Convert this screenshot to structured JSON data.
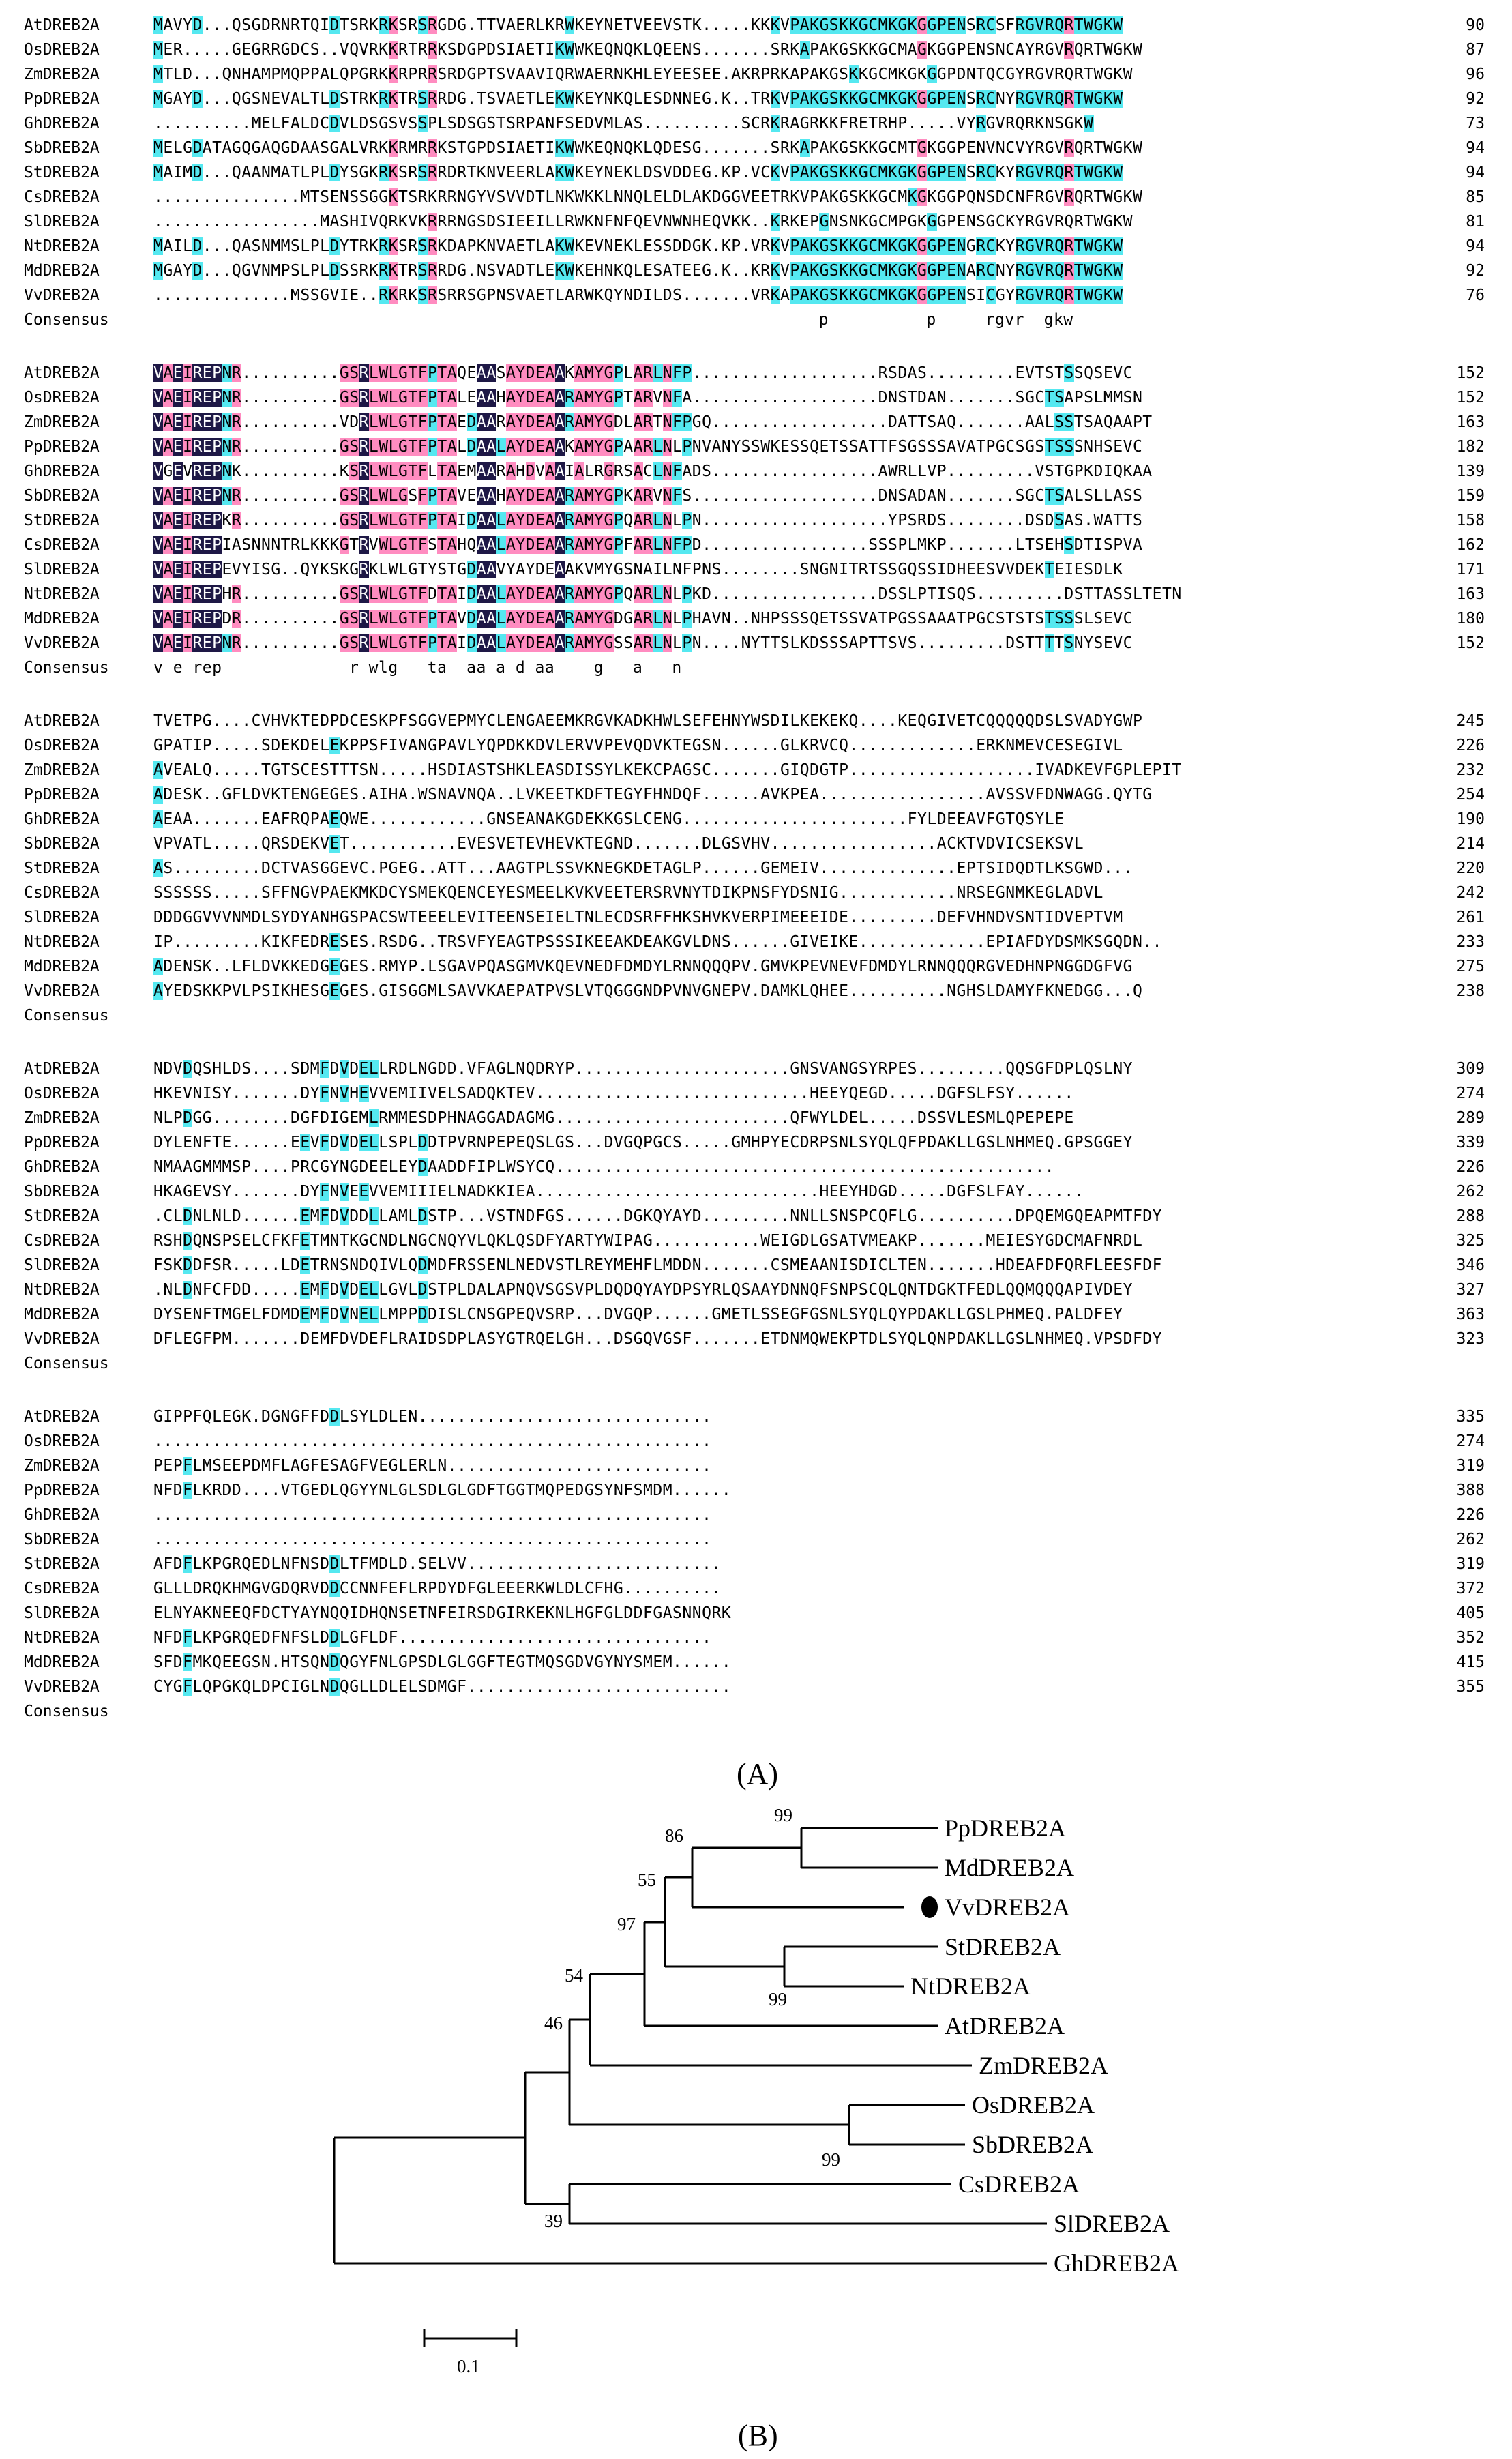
{
  "panel_labels": {
    "a": "(A)",
    "b": "(B)"
  },
  "alignment": {
    "consensus_label": "Consensus",
    "colors": {
      "identical": "#1e1846",
      "high": "#ff8cc0",
      "partial": "#55e8f0"
    },
    "blocks": [
      {
        "rows": [
          {
            "name": "AtDREB2A",
            "seq": "MAVYD...QSGDRNRTQIDTSRKRKSRSRGDG.TTVAERLKRWKEYNETVEEVSTK.....KKKVPAKGSKKGCMKGKGGPENSRCSFRGVRQRTWGKW",
            "num": "90"
          },
          {
            "name": "OsDREB2A",
            "seq": "MER.....GEGRRGDCS..VQVRKKRTRRKSDGPDSIAETIKWWKEQNQKLQEENS.......SRKAPAKGSKKGCMAGKGGPENSNCAYRGVRQRTWGKW",
            "num": "87"
          },
          {
            "name": "ZmDREB2A",
            "seq": "MTLD...QNHAMPMQPPALQPGRKKRPRRSRDGPTSVAAVIQRWAERNKHLEYEESEE.AKRPRKAPAKGSKKGCMKGKGGPDNTQCGYRGVRQRTWGKW",
            "num": "96"
          },
          {
            "name": "PpDREB2A",
            "seq": "MGAYD...QGSNEVALTLDSTRKRKTRSRRDG.TSVAETLEKWKEYNKQLESDNNEG.K..TRKVPAKGSKKGCMKGKGGPENSRCNYRGVRQRTWGKW",
            "num": "92"
          },
          {
            "name": "GhDREB2A",
            "seq": "..........MELFALDCDVLDSGSVSSPLSDSGSTSRPANFSEDVMLAS..........SCRKRAGRKKFRETRHP.....VYRGVRQRKNSGKW",
            "num": "73"
          },
          {
            "name": "SbDREB2A",
            "seq": "MELGDATAGQGAQGDAASGALVRKKRMRRKSTGPDSIAETIKWWKEQNQKLQDESG.......SRKAPAKGSKKGCMTGKGGPENVNCVYRGVRQRTWGKW",
            "num": "94"
          },
          {
            "name": "StDREB2A",
            "seq": "MAIMD...QAANMATLPLDYSGKRKSRSRRDRTKNVEERLAKWKEYNEKLDSVDDEG.KP.VCKVPAKGSKKGCMKGKGGPENSRCKYRGVRQRTWGKW",
            "num": "94"
          },
          {
            "name": "CsDREB2A",
            "seq": "...............MTSENSSGGKTSRKRRNGYVSVVDTLNKWKKLNNQLELDLAKDGGVEETRKVPAKGSKKGCMKGKGGPQNSDCNFRGVRQRTWGKW",
            "num": "85"
          },
          {
            "name": "SlDREB2A",
            "seq": ".................MASHIVQRKVKRRRNGSDSIEEILLRWKNFNFQEVNWNHEQVKK..KRKEPGNSNKGCMPGKGGPENSGCKYRGVRQRTWGKW",
            "num": "81"
          },
          {
            "name": "NtDREB2A",
            "seq": "MAILD...QASNMMSLPLDYTRKRKSRSRKDAPKNVAETLAKWKEVNEKLESSDDGK.KP.VRKVPAKGSKKGCMKGKGGPENGRCKYRGVRQRTWGKW",
            "num": "94"
          },
          {
            "name": "MdDREB2A",
            "seq": "MGAYD...QGVNMPSLPLDSSRKRKTRSRRDG.NSVADTLEKWKEHNKQLESATEEG.K..KRKVPAKGSKKGCMKGKGGPENARCNYRGVRQRTWGKW",
            "num": "92"
          },
          {
            "name": "VvDREB2A",
            "seq": "..............MSSGVIE..RKRKSRSRRSGPNSVAETLARWKQYNDILDS.......VRKAPAKGSKKGCMKGKGGPENSICGYRGVRQRTWGKW",
            "num": "76"
          }
        ],
        "consensus": "                                                                    p          p     rgvr  gkw"
      },
      {
        "rows": [
          {
            "name": "AtDREB2A",
            "seq": "VAEIREPNR..........GSRLWLGTFPTAQEAASAYDEAAKAMYGPLARLNFP...................RSDAS.........EVTSTSSQSEVC",
            "num": "152"
          },
          {
            "name": "OsDREB2A",
            "seq": "VAEIREPNR..........GSRLWLGTFPTALEAAHAYDEAARAMYGPTARVNFA...................DNSTDAN.......SGCTSAPSLMMSN",
            "num": "152"
          },
          {
            "name": "ZmDREB2A",
            "seq": "VAEIREPNR..........VDRLWLGTFPTAEDAARAYDEAARAMYGDLARTNFPGQ..................DATTSAQ.......AALSSTSAQAAPT",
            "num": "163"
          },
          {
            "name": "PpDREB2A",
            "seq": "VAEIREPNR..........GSRLWLGTFPTALDAALAYDEAAKAMYGPAARLNLPNVANYSSWKESSQETSSATTFSGSSSAVATPGCSGSTSSSNHSEVC",
            "num": "182"
          },
          {
            "name": "GhDREB2A",
            "seq": "VGEVREPNK..........KSRLWLGTFLTAEMAARAHDVAAIALRGRSACLNFADS.................AWRLLVP.........VSTGPKDIQKAA",
            "num": "139"
          },
          {
            "name": "SbDREB2A",
            "seq": "VAEIREPNR..........GSRLWLGSFPTAVEAAHAYDEAARAMYGPKARVNFS...................DNSADAN.......SGCTSALSLLASS",
            "num": "159"
          },
          {
            "name": "StDREB2A",
            "seq": "VAEIREPKR..........GSRLWLGTFPTAIDAALAYDEAARAMYGPQARLNLPN...................YPSRDS........DSDSAS.WATTS",
            "num": "158"
          },
          {
            "name": "CsDREB2A",
            "seq": "VAEIREPIASNNNTRLKKKGTRVWLGTFSTAHQAALAYDEAARAMYGPFARLNFPD.................SSSPLMKP.......LTSEHSDTISPVA",
            "num": "162"
          },
          {
            "name": "SlDREB2A",
            "seq": "VAEIREPEVYISG..QYKSKGRKLWLGTYSTGDAAVYAYDEAAKVMYGSNAILNFPNS........SNGNITRTSSGQSSIDHEESVVDEKTEIESDLK",
            "num": "171"
          },
          {
            "name": "NtDREB2A",
            "seq": "VAEIREPHR..........GSRLWLGTFDTAIDAALAYDEAARAMYGPQARLNLPKD.................DSSLPTISQS.........DSTTASSLTETN",
            "num": "163"
          },
          {
            "name": "MdDREB2A",
            "seq": "VAEIREPDR..........GSRLWLGTFPTAVDAALAYDEAARAMYGDGARLNLPHAVN..NHPSSSQETSSVATPGSSAAATPGCSTSTSTSSSLSEVC",
            "num": "180"
          },
          {
            "name": "VvDREB2A",
            "seq": "VAEIREPNR..........GSRLWLGTFPTAIDAALAYDEAARAMYGSSARLNLPN....NYTTSLKDSSSAPTTSVS.........DSTTTTSNYSEVC",
            "num": "152"
          }
        ],
        "consensus": "v e rep             r wlg   ta  aa a d aa    g   a   n"
      },
      {
        "rows": [
          {
            "name": "AtDREB2A",
            "seq": "TVETPG....CVHVKTEDPDCESKPFSGGVEPMYCLENGAEEMKRGVKADKHWLSEFEHNYWSDILKEKEKQ....KEQGIVETCQQQQQDSLSVADYGWP",
            "num": "245"
          },
          {
            "name": "OsDREB2A",
            "seq": "GPATIP.....SDEKDELEKPPSFIVANGPAVLYQPDKKDVLERVVPEVQDVKTEGSN......GLKRVCQ.............ERKNMEVCESEGIVL",
            "num": "226"
          },
          {
            "name": "ZmDREB2A",
            "seq": "AVEALQ.....TGTSCESTTTSN.....HSDIASTSHKLEASDISSYLKEKCPAGSC.......GIQDGTP...................IVADKEVFGPLEPIT",
            "num": "232"
          },
          {
            "name": "PpDREB2A",
            "seq": "ADESK..GFLDVKTENGEGES.AIHA.WSNAVNQA..LVKEETKDFTEGYFHNDQF......AVKPEA.................AVSSVFDNWAGG.QYTG",
            "num": "254"
          },
          {
            "name": "GhDREB2A",
            "seq": "AEAA.......EAFRQPAEQWE............GNSEANAKGDEKKGSLCENG.......................FYLDEEAVFGTQSYLE",
            "num": "190"
          },
          {
            "name": "SbDREB2A",
            "seq": "VPVATL.....QRSDEKVET...........EVESVETEVHEVKTEGND.......DLGSVHV.................ACKTVDVICSEKSVL",
            "num": "214"
          },
          {
            "name": "StDREB2A",
            "seq": "AS.........DCTVASGGEVC.PGEG..ATT...AAGTPLSSVKNEGKDETAGLP......GEMEIV..............EPTSIDQDTLKSGWD...",
            "num": "220"
          },
          {
            "name": "CsDREB2A",
            "seq": "SSSSSS.....SFFNGVPAEKMKDCYSMEKQENCEYESMEELKVKVEETERSRVNYTDIKPNSFYDSNIG............NRSEGNMKEGLADVL",
            "num": "242"
          },
          {
            "name": "SlDREB2A",
            "seq": "DDDGGVVVNMDLSYDYANHGSPACSWTEEELEVITEENSEIELTNLECDSRFFHKSHVKVERPIMEEEIDE.........DEFVHNDVSNTIDVEPTVM",
            "num": "261"
          },
          {
            "name": "NtDREB2A",
            "seq": "IP.........KIKFEDRESES.RSDG..TRSVFYEAGTPSSSIKEEAKDEAKGVLDNS......GIVEIKE.............EPIAFDYDSMKSGQDN..",
            "num": "233"
          },
          {
            "name": "MdDREB2A",
            "seq": "ADENSK..LFLDVKKEDGEGES.RMYP.LSGAVPQASGMVKQEVNEDFDMDYLRNNQQQPV.GMVKPEVNEVFDMDYLRNNQQQRGVEDHNPNGGDGFVG",
            "num": "275"
          },
          {
            "name": "VvDREB2A",
            "seq": "AYEDSKKPVLPSIKHESGEGES.GISGGMLSAVVKAEPATPVSLVTQGGGNDPVNVGNEPV.DAMKLQHEE..........NGHSLDAMYFKNEDGG...Q",
            "num": "238"
          }
        ],
        "consensus": ""
      },
      {
        "rows": [
          {
            "name": "AtDREB2A",
            "seq": "NDVDQSHLDS....SDMFDVDELLRDLNGDD.VFAGLNQDRYP......................GNSVANGSYRPES.........QQSGFDPLQSLNY",
            "num": "309"
          },
          {
            "name": "OsDREB2A",
            "seq": "HKEVNISY.......DYFNVHEVVEMIIVELSADQKTEV............................HEEYQEGD.....DGFSLFSY......",
            "num": "274"
          },
          {
            "name": "ZmDREB2A",
            "seq": "NLPDGG........DGFDIGEMLRMMESDPHNAGGADAGMG........................QFWYLDEL.....DSSVLESMLQPEPEPE",
            "num": "289"
          },
          {
            "name": "PpDREB2A",
            "seq": "DYLENFTE......EEVFDVDELLSPLDDTPVRNPEPEQSLGS...DVGQPGCS.....GMHPYECDRPSNLSYQLQFPDAKLLGSLNHMEQ.GPSGGEY",
            "num": "339"
          },
          {
            "name": "GhDREB2A",
            "seq": "NMAAGMMMSP....PRCGYNGDEELEYDAADDFIPLWSYCQ...................................................",
            "num": "226"
          },
          {
            "name": "SbDREB2A",
            "seq": "HKAGEVSY.......DYFNVEEVVEMIIIELNADKKIEA.............................HEEYHDGD.....DGFSLFAY......",
            "num": "262"
          },
          {
            "name": "StDREB2A",
            "seq": ".CLDNLNLD......EMFDVDDLLAMLDSTP...VSTNDFGS......DGKQYAYD.........NNLLSNSPCQFLG..........DPQEMGQEAPMTFDY",
            "num": "288"
          },
          {
            "name": "CsDREB2A",
            "seq": "RSHDQNSPSELCFKFETMNTKGCNDLNGCNQYVLQKLQSDFYARTYWIPAG...........WEIGDLGSATVMEAKP.......MEIESYGDCMAFNRDL",
            "num": "325"
          },
          {
            "name": "SlDREB2A",
            "seq": "FSKDDFSR.....LDETRNSNDQIVLQDMDFRSSENLNEDVSTLREYMEHFLMDDN.......CSMEAANISDICLTEN.......HDEAFDFQRFLEESFDF",
            "num": "346"
          },
          {
            "name": "NtDREB2A",
            "seq": ".NLDNFCFDD.....EMFDVDELLGVLDSTPLDALAPNQVSGSVPLDQDQYAYDPSYRLQSAAYDNNQFSNPSCQLQNTDGKTFEDLQQMQQQAPIVDEY",
            "num": "327"
          },
          {
            "name": "MdDREB2A",
            "seq": "DYSENFTMGELFDMDEMFDVNELLMPPDDISLCNSGPEQVSRP...DVGQP......GMETLSSEGFGSNLSYQLQYPDAKLLGSLPHMEQ.PALDFEY",
            "num": "363"
          },
          {
            "name": "VvDREB2A",
            "seq": "DFLEGFPM.......DEMFDVDEFLRAIDSDPLASYGTRQELGH...DSGQVGSF.......ETDNMQWEKPTDLSYQLQNPDAKLLGSLNHMEQ.VPSDFDY",
            "num": "323"
          }
        ],
        "consensus": ""
      },
      {
        "rows": [
          {
            "name": "AtDREB2A",
            "seq": "GIPPFQLEGK.DGNGFFDDLSYLDLEN..............................",
            "num": "335"
          },
          {
            "name": "OsDREB2A",
            "seq": ".........................................................",
            "num": "274"
          },
          {
            "name": "ZmDREB2A",
            "seq": "PEPFLMSEEPDMFLAGFESAGFVEGLERLN...........................",
            "num": "319"
          },
          {
            "name": "PpDREB2A",
            "seq": "NFDFLKRDD....VTGEDLQGYYNLGLSDLGLGDFTGGTMQPEDGSYNFSMDM......",
            "num": "388"
          },
          {
            "name": "GhDREB2A",
            "seq": ".........................................................",
            "num": "226"
          },
          {
            "name": "SbDREB2A",
            "seq": ".........................................................",
            "num": "262"
          },
          {
            "name": "StDREB2A",
            "seq": "AFDFLKPGRQEDLNFNSDDLTFMDLD.SELVV..........................",
            "num": "319"
          },
          {
            "name": "CsDREB2A",
            "seq": "GLLLDRQKHMGVGDQRVDDCCNNFEFLRPDYDFGLEEERKWLDLCFHG..........",
            "num": "372"
          },
          {
            "name": "SlDREB2A",
            "seq": "ELNYAKNEEQFDCTYAYNQQIDHQNSETNFEIRSDGIRKEKNLHGFGLDDFGASNNQRK",
            "num": "405"
          },
          {
            "name": "NtDREB2A",
            "seq": "NFDFLKPGRQEDFNFSLDDLGFLDF................................",
            "num": "352"
          },
          {
            "name": "MdDREB2A",
            "seq": "SFDFMKQEEGSN.HTSQNDQGYFNLGPSDLGLGGFTEGTMQSGDVGYNYSMEM......",
            "num": "415"
          },
          {
            "name": "VvDREB2A",
            "seq": "CYGFLQPGKQLDPCIGLNDQGLLDLELSDMGF...........................",
            "num": "355"
          }
        ],
        "consensus": ""
      }
    ]
  },
  "tree": {
    "leaves": [
      "PpDREB2A",
      "MdDREB2A",
      "VvDREB2A",
      "StDREB2A",
      "NtDREB2A",
      "AtDREB2A",
      "ZmDREB2A",
      "OsDREB2A",
      "SbDREB2A",
      "CsDREB2A",
      "SlDREB2A",
      "GhDREB2A"
    ],
    "bootstrap": [
      "99",
      "86",
      "55",
      "97",
      "99",
      "54",
      "46",
      "99",
      "39"
    ],
    "scale_label": "0.1",
    "marked_leaf": "VvDREB2A"
  }
}
